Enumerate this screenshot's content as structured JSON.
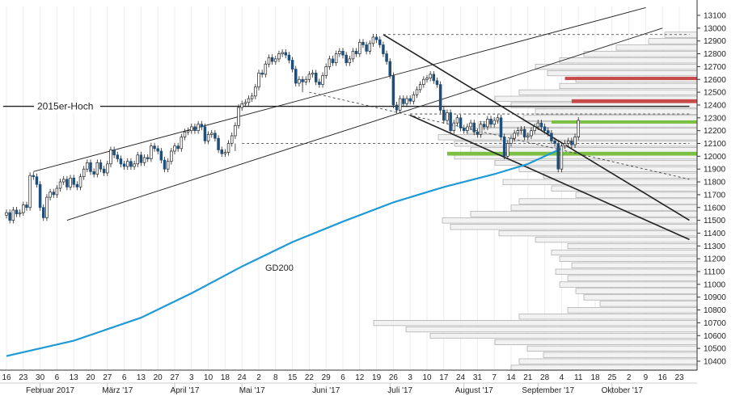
{
  "chart_data": {
    "type": "candlestick",
    "y_axis": {
      "min": 10300,
      "max": 13150,
      "ticks": [
        10400,
        10500,
        10600,
        10700,
        10800,
        10900,
        11000,
        11100,
        11200,
        11300,
        11400,
        11500,
        11600,
        11700,
        11800,
        11900,
        12000,
        12100,
        12200,
        12300,
        12400,
        12500,
        12600,
        12700,
        12800,
        12900,
        13000,
        13100
      ]
    },
    "x_axis": {
      "day_ticks": [
        {
          "label": "16",
          "i": 0
        },
        {
          "label": "23",
          "i": 5
        },
        {
          "label": "30",
          "i": 10
        },
        {
          "label": "6",
          "i": 15
        },
        {
          "label": "13",
          "i": 20
        },
        {
          "label": "20",
          "i": 25
        },
        {
          "label": "27",
          "i": 30
        },
        {
          "label": "6",
          "i": 35
        },
        {
          "label": "13",
          "i": 40
        },
        {
          "label": "20",
          "i": 45
        },
        {
          "label": "27",
          "i": 50
        },
        {
          "label": "3",
          "i": 55
        },
        {
          "label": "10",
          "i": 60
        },
        {
          "label": "18",
          "i": 65
        },
        {
          "label": "24",
          "i": 70
        },
        {
          "label": "2",
          "i": 75
        },
        {
          "label": "8",
          "i": 80
        },
        {
          "label": "15",
          "i": 85
        },
        {
          "label": "22",
          "i": 90
        },
        {
          "label": "29",
          "i": 95
        },
        {
          "label": "6",
          "i": 100
        },
        {
          "label": "12",
          "i": 105
        },
        {
          "label": "19",
          "i": 110
        },
        {
          "label": "26",
          "i": 115
        },
        {
          "label": "3",
          "i": 120
        },
        {
          "label": "10",
          "i": 125
        },
        {
          "label": "17",
          "i": 130
        },
        {
          "label": "24",
          "i": 135
        },
        {
          "label": "31",
          "i": 140
        },
        {
          "label": "7",
          "i": 145
        },
        {
          "label": "14",
          "i": 150
        },
        {
          "label": "21",
          "i": 155
        },
        {
          "label": "28",
          "i": 160
        },
        {
          "label": "4",
          "i": 165
        },
        {
          "label": "11",
          "i": 170
        },
        {
          "label": "18",
          "i": 175
        },
        {
          "label": "25",
          "i": 180
        },
        {
          "label": "2",
          "i": 185
        },
        {
          "label": "9",
          "i": 190
        },
        {
          "label": "16",
          "i": 195
        },
        {
          "label": "23",
          "i": 200
        }
      ],
      "month_ticks": [
        {
          "label": "Februar 2017",
          "i": 13
        },
        {
          "label": "März '17",
          "i": 33
        },
        {
          "label": "April '17",
          "i": 53
        },
        {
          "label": "Mai '17",
          "i": 73
        },
        {
          "label": "Juni '17",
          "i": 95
        },
        {
          "label": "Juli '17",
          "i": 117
        },
        {
          "label": "August '17",
          "i": 139
        },
        {
          "label": "September '17",
          "i": 161
        },
        {
          "label": "Oktober '17",
          "i": 183
        }
      ]
    },
    "annotations": {
      "hoch_label": "2015er-Hoch",
      "hoch_level": 12390,
      "gd_label": "GD200"
    },
    "colors": {
      "up": "#222222",
      "down": "#1f4e79",
      "gd200": "#1e9ad6",
      "green": "#7cc043",
      "red": "#c94a4a",
      "profile": "#d9d9d9"
    },
    "zones": [
      {
        "color": "red",
        "from": 12595,
        "to": 12620
      },
      {
        "color": "red",
        "from": 12415,
        "to": 12445
      },
      {
        "color": "green",
        "from": 12255,
        "to": 12280
      },
      {
        "color": "green",
        "from": 12005,
        "to": 12035
      }
    ],
    "gd200": [
      {
        "i": 0,
        "y": 10440
      },
      {
        "i": 20,
        "y": 10560
      },
      {
        "i": 40,
        "y": 10740
      },
      {
        "i": 55,
        "y": 10930
      },
      {
        "i": 70,
        "y": 11140
      },
      {
        "i": 85,
        "y": 11330
      },
      {
        "i": 100,
        "y": 11490
      },
      {
        "i": 115,
        "y": 11640
      },
      {
        "i": 130,
        "y": 11760
      },
      {
        "i": 145,
        "y": 11860
      },
      {
        "i": 155,
        "y": 11940
      },
      {
        "i": 165,
        "y": 12060
      }
    ],
    "trend_lines": [
      {
        "i1": 8,
        "y1": 11880,
        "i2": 190,
        "y2": 13160,
        "w": 0.9
      },
      {
        "i1": 18,
        "y1": 11500,
        "i2": 195,
        "y2": 13000,
        "w": 0.9
      },
      {
        "i1": 112,
        "y1": 12950,
        "i2": 203,
        "y2": 11500,
        "w": 1.6
      },
      {
        "i1": 120,
        "y1": 12320,
        "i2": 203,
        "y2": 11350,
        "w": 1.6
      },
      {
        "i1": -1,
        "y1": 12390,
        "i2": 203,
        "y2": 12390,
        "w": 1.4
      }
    ],
    "dashed_lines": [
      {
        "i1": 112,
        "y1": 12950,
        "i2": 203,
        "y2": 12950
      },
      {
        "i1": 70,
        "y1": 12100,
        "i2": 203,
        "y2": 12100
      },
      {
        "i1": 90,
        "y1": 12500,
        "i2": 203,
        "y2": 11820
      },
      {
        "i1": 120,
        "y1": 12330,
        "i2": 203,
        "y2": 12330
      }
    ],
    "volume_profile": [
      {
        "y": 12950,
        "len": 40
      },
      {
        "y": 12900,
        "len": 60
      },
      {
        "y": 12850,
        "len": 100
      },
      {
        "y": 12800,
        "len": 140
      },
      {
        "y": 12750,
        "len": 170
      },
      {
        "y": 12700,
        "len": 200
      },
      {
        "y": 12650,
        "len": 185
      },
      {
        "y": 12600,
        "len": 150
      },
      {
        "y": 12550,
        "len": 170
      },
      {
        "y": 12500,
        "len": 220
      },
      {
        "y": 12450,
        "len": 250
      },
      {
        "y": 12400,
        "len": 230
      },
      {
        "y": 12350,
        "len": 200
      },
      {
        "y": 12300,
        "len": 215
      },
      {
        "y": 12250,
        "len": 270
      },
      {
        "y": 12200,
        "len": 285
      },
      {
        "y": 12150,
        "len": 320
      },
      {
        "y": 12100,
        "len": 300
      },
      {
        "y": 12050,
        "len": 280
      },
      {
        "y": 12000,
        "len": 300
      },
      {
        "y": 11950,
        "len": 250
      },
      {
        "y": 11900,
        "len": 220
      },
      {
        "y": 11850,
        "len": 190
      },
      {
        "y": 11800,
        "len": 240
      },
      {
        "y": 11750,
        "len": 180
      },
      {
        "y": 11700,
        "len": 150
      },
      {
        "y": 11650,
        "len": 220
      },
      {
        "y": 11600,
        "len": 230
      },
      {
        "y": 11550,
        "len": 280
      },
      {
        "y": 11500,
        "len": 315
      },
      {
        "y": 11450,
        "len": 305
      },
      {
        "y": 11400,
        "len": 245
      },
      {
        "y": 11350,
        "len": 200
      },
      {
        "y": 11300,
        "len": 160
      },
      {
        "y": 11250,
        "len": 180
      },
      {
        "y": 11200,
        "len": 170
      },
      {
        "y": 11150,
        "len": 155
      },
      {
        "y": 11100,
        "len": 175
      },
      {
        "y": 11050,
        "len": 160
      },
      {
        "y": 11000,
        "len": 170
      },
      {
        "y": 10950,
        "len": 150
      },
      {
        "y": 10900,
        "len": 140
      },
      {
        "y": 10850,
        "len": 120
      },
      {
        "y": 10800,
        "len": 160
      },
      {
        "y": 10750,
        "len": 220
      },
      {
        "y": 10700,
        "len": 400
      },
      {
        "y": 10650,
        "len": 360
      },
      {
        "y": 10600,
        "len": 330
      },
      {
        "y": 10550,
        "len": 250
      },
      {
        "y": 10500,
        "len": 210
      },
      {
        "y": 10450,
        "len": 190
      },
      {
        "y": 10400,
        "len": 220
      },
      {
        "y": 10350,
        "len": 230
      }
    ],
    "close": [
      11560,
      11500,
      11580,
      11550,
      11560,
      11620,
      11600,
      11850,
      11840,
      11780,
      11600,
      11520,
      11680,
      11720,
      11700,
      11750,
      11800,
      11820,
      11760,
      11830,
      11780,
      11760,
      11840,
      11900,
      11950,
      11880,
      11860,
      11950,
      11900,
      11870,
      11940,
      12050,
      12010,
      11980,
      11940,
      11920,
      11960,
      11920,
      11940,
      12010,
      11950,
      11990,
      11980,
      12080,
      12060,
      12040,
      11970,
      11900,
      11960,
      12040,
      12080,
      12060,
      12150,
      12190,
      12200,
      12230,
      12200,
      12250,
      12230,
      12120,
      12170,
      12180,
      12140,
      12050,
      12020,
      12030,
      12100,
      12160,
      12240,
      12380,
      12410,
      12420,
      12450,
      12470,
      12540,
      12650,
      12640,
      12720,
      12770,
      12740,
      12760,
      12800,
      12810,
      12790,
      12750,
      12680,
      12570,
      12600,
      12580,
      12600,
      12640,
      12650,
      12580,
      12560,
      12630,
      12700,
      12760,
      12730,
      12800,
      12820,
      12790,
      12730,
      12760,
      12820,
      12800,
      12890,
      12870,
      12820,
      12880,
      12930,
      12910,
      12870,
      12800,
      12740,
      12630,
      12400,
      12360,
      12450,
      12410,
      12450,
      12430,
      12480,
      12520,
      12560,
      12600,
      12610,
      12640,
      12590,
      12560,
      12360,
      12280,
      12340,
      12200,
      12260,
      12300,
      12220,
      12200,
      12230,
      12260,
      12190,
      12170,
      12250,
      12230,
      12290,
      12250,
      12280,
      12300,
      12150,
      12000,
      12100,
      12140,
      12180,
      12200,
      12210,
      12150,
      12160,
      12200,
      12230,
      12260,
      12230,
      12200,
      12180,
      12120,
      12100,
      11900,
      12080,
      12100,
      12120,
      12090,
      12150,
      12280
    ]
  }
}
